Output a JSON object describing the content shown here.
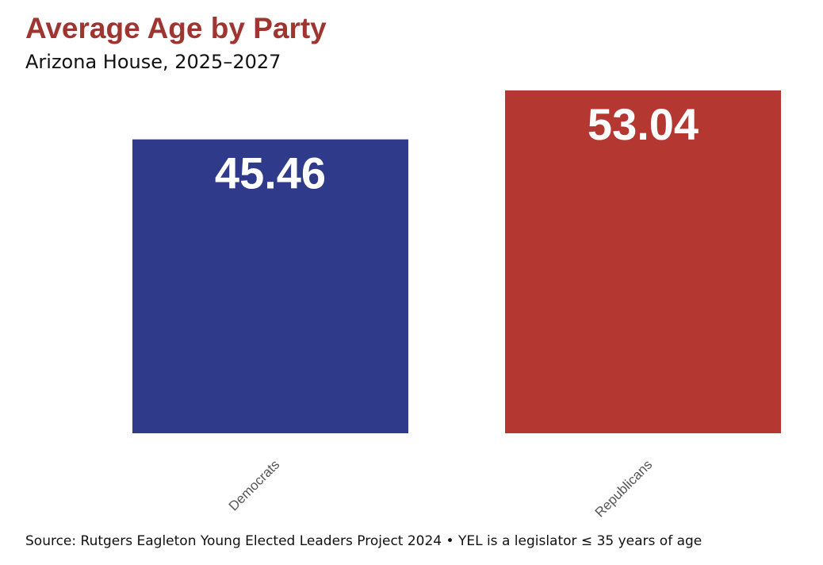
{
  "header": {
    "title": "Average Age by Party",
    "subtitle": "Arizona House, 2025–2027"
  },
  "footer": {
    "source": "Source: Rutgers Eagleton Young Elected Leaders Project 2024 • YEL is a legislator ≤ 35 years of age"
  },
  "colors": {
    "title": "#9e3530",
    "democrats": "#2f3a8a",
    "republicans": "#b53732",
    "value_label": "#ffffff",
    "tick_label": "#555555"
  },
  "chart_data": {
    "type": "bar",
    "title": "Average Age by Party",
    "subtitle": "Arizona House, 2025–2027",
    "categories": [
      "Democrats",
      "Republicans"
    ],
    "values": [
      45.46,
      53.04
    ],
    "value_labels": [
      "45.46",
      "53.04"
    ],
    "bar_colors": [
      "#2f3a8a",
      "#b53732"
    ],
    "ylim": [
      0,
      54.5
    ],
    "grid": false,
    "legend": "none",
    "xlabel": "",
    "ylabel": ""
  }
}
